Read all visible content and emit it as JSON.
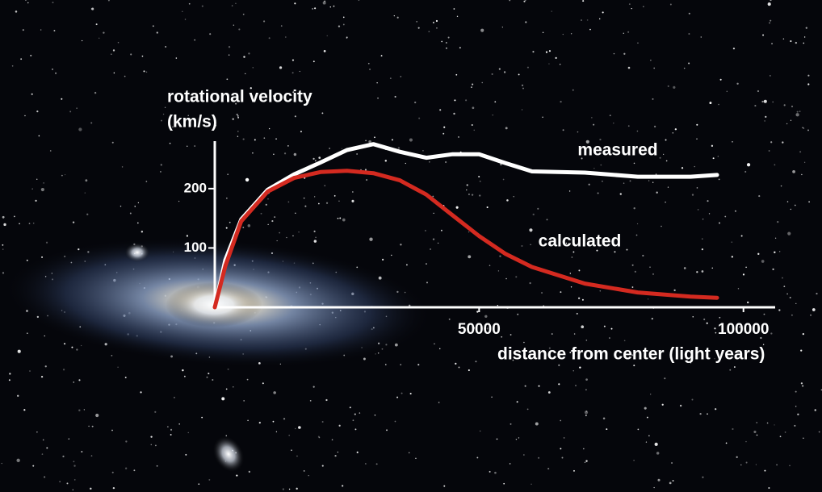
{
  "chart_data": {
    "type": "line",
    "ylabel": [
      "rotational velocity",
      "(km/s)"
    ],
    "xlabel": "distance from center (light years)",
    "x": [
      0,
      2000,
      5000,
      10000,
      15000,
      20000,
      25000,
      30000,
      35000,
      40000,
      45000,
      50000,
      55000,
      60000,
      70000,
      80000,
      90000,
      95000
    ],
    "series": [
      {
        "name": "measured",
        "color": "#ffffff",
        "values": [
          0,
          80,
          148,
          198,
          224,
          244,
          265,
          275,
          262,
          252,
          258,
          258,
          243,
          229,
          227,
          220,
          220,
          223
        ]
      },
      {
        "name": "calculated",
        "color": "#d42a20",
        "values": [
          0,
          70,
          145,
          195,
          218,
          228,
          230,
          226,
          214,
          190,
          155,
          120,
          90,
          68,
          40,
          25,
          18,
          16
        ]
      }
    ],
    "xlim": [
      0,
      106000
    ],
    "ylim": [
      0,
      280
    ],
    "xticks": [
      50000,
      100000
    ],
    "yticks": [
      100,
      200
    ]
  }
}
